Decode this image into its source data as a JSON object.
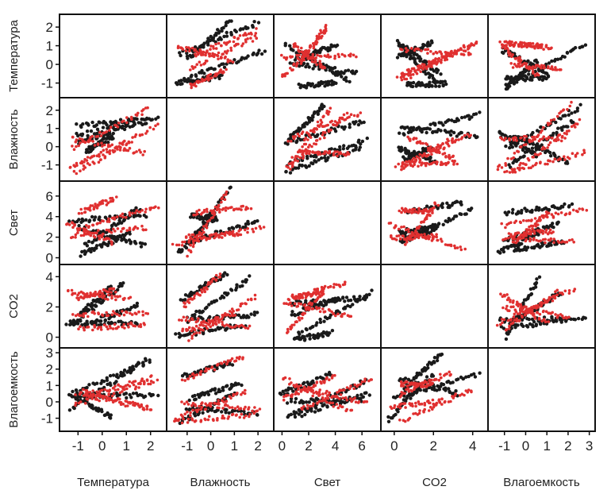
{
  "chart_data": {
    "type": "scatter",
    "variables": [
      "Температура",
      "Влажность",
      "Свет",
      "CO2",
      "Влагоемкость"
    ],
    "ticks": [
      [
        -1,
        0,
        1,
        2
      ],
      [
        -1,
        0,
        1,
        2
      ],
      [
        0,
        2,
        4,
        6
      ],
      [
        0,
        2,
        4
      ],
      [
        -1,
        0,
        1,
        2,
        3
      ]
    ],
    "x_ticks": [
      [
        -1,
        0,
        1,
        2
      ],
      [
        -1,
        0,
        1,
        2
      ],
      [
        0,
        2,
        4,
        6
      ],
      [
        0,
        2,
        4
      ],
      [
        -1,
        0,
        1,
        2,
        3
      ]
    ],
    "ranges": [
      [
        -1.7,
        2.6
      ],
      [
        -1.8,
        2.6
      ],
      [
        -0.5,
        7.3
      ],
      [
        -0.6,
        4.7
      ],
      [
        -1.7,
        3.2
      ]
    ],
    "grid": false,
    "legend": "none",
    "series_colors": [
      "#1a1a1a",
      "#e03030"
    ],
    "diagonal": "empty"
  }
}
